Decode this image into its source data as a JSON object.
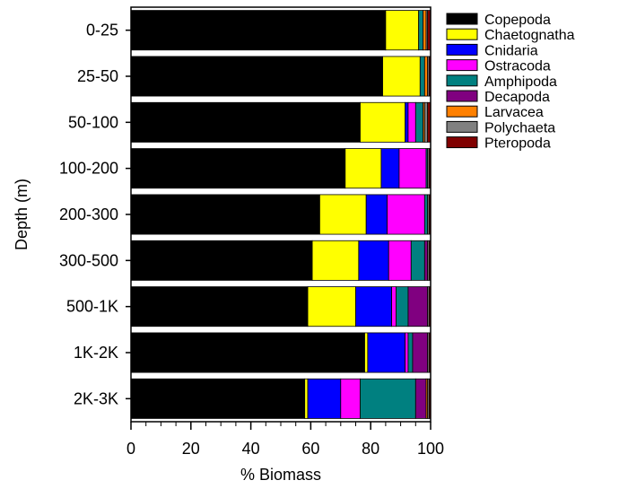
{
  "chart_data": {
    "type": "bar",
    "orientation": "horizontal",
    "stacked": true,
    "xlabel": "% Biomass",
    "ylabel": "Depth (m)",
    "xlim": [
      0,
      100
    ],
    "xticks": [
      0,
      20,
      40,
      60,
      80,
      100
    ],
    "grid": false,
    "legend_position": "right",
    "categories": [
      "0-25",
      "25-50",
      "50-100",
      "100-200",
      "200-300",
      "300-500",
      "500-1K",
      "1K-2K",
      "2K-3K"
    ],
    "series": [
      {
        "name": "Copepoda",
        "color": "#000000",
        "values": [
          85,
          84,
          76.5,
          71.5,
          63,
          60.5,
          59,
          78,
          58
        ]
      },
      {
        "name": "Chaetognatha",
        "color": "#ffff00",
        "values": [
          11,
          12.5,
          15,
          12,
          15.5,
          15.5,
          16,
          1,
          1
        ]
      },
      {
        "name": "Cnidaria",
        "color": "#0000ff",
        "values": [
          0,
          0,
          1,
          6,
          7,
          10,
          12,
          12.5,
          11
        ]
      },
      {
        "name": "Ostracoda",
        "color": "#ff00ff",
        "values": [
          0,
          0,
          2.5,
          9,
          12.5,
          7.5,
          1.5,
          1,
          6.5
        ]
      },
      {
        "name": "Amphipoda",
        "color": "#008080",
        "values": [
          1.5,
          1.5,
          2.5,
          0.5,
          1,
          4.5,
          4,
          1.5,
          18.5
        ]
      },
      {
        "name": "Decapoda",
        "color": "#800080",
        "values": [
          0,
          0,
          0,
          0,
          0,
          1,
          6.5,
          5,
          3.5
        ]
      },
      {
        "name": "Larvacea",
        "color": "#ff8000",
        "values": [
          1,
          1,
          0.5,
          0,
          0,
          0,
          0,
          0,
          0.5
        ]
      },
      {
        "name": "Polychaeta",
        "color": "#808080",
        "values": [
          0.5,
          0.5,
          1,
          0.5,
          0.5,
          0.5,
          0.5,
          0.5,
          0.5
        ]
      },
      {
        "name": "Pteropoda",
        "color": "#800000",
        "values": [
          1,
          0.5,
          1,
          0.5,
          0.5,
          0.5,
          0.5,
          0.5,
          0.5
        ]
      }
    ]
  }
}
